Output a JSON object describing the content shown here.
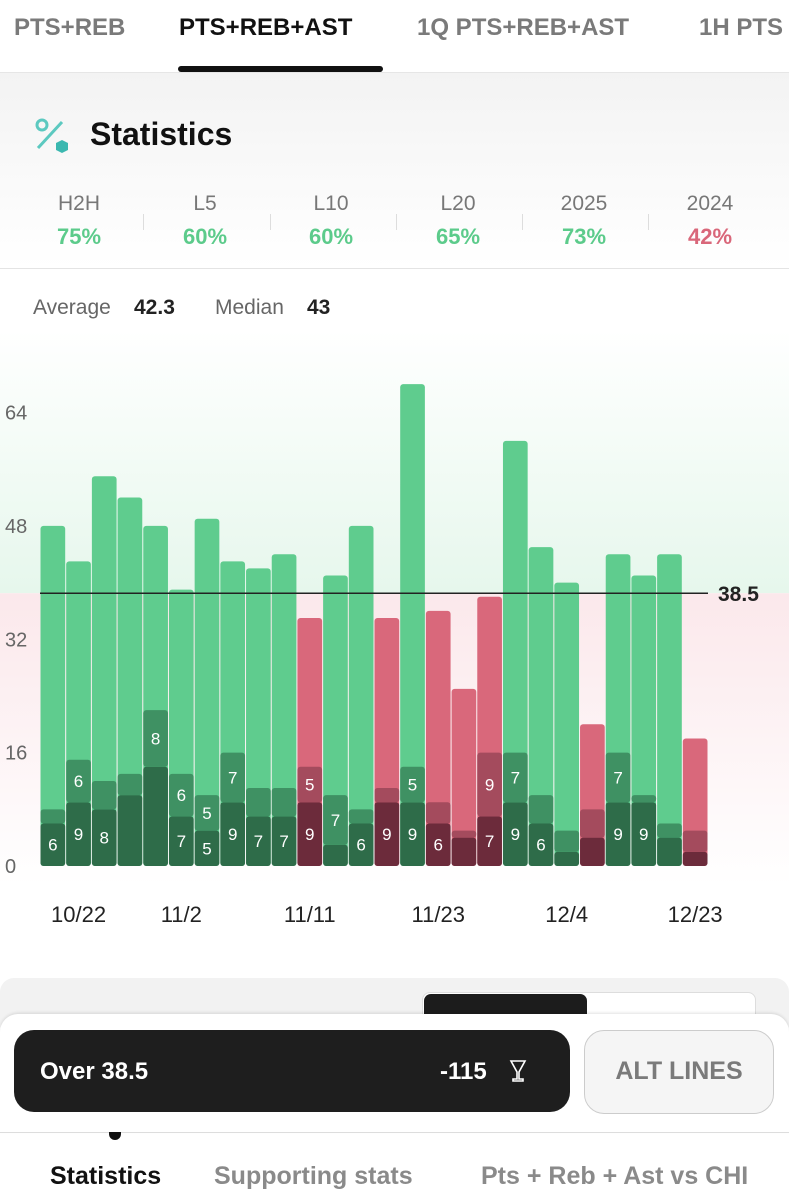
{
  "tabs": [
    "PTS+REB",
    "PTS+REB+AST",
    "1Q PTS+REB+AST",
    "1H PTS"
  ],
  "stats": {
    "title": "Statistics",
    "periods": [
      {
        "label": "H2H",
        "value": "75%"
      },
      {
        "label": "L5",
        "value": "60%"
      },
      {
        "label": "L10",
        "value": "60%"
      },
      {
        "label": "L20",
        "value": "65%"
      },
      {
        "label": "2025",
        "value": "73%"
      },
      {
        "label": "2024",
        "value": "42%"
      }
    ]
  },
  "summary": {
    "average_label": "Average",
    "average": "42.3",
    "median_label": "Median",
    "median": "43"
  },
  "chart_data": {
    "type": "bar",
    "categories": [
      null,
      "10/22",
      null,
      null,
      null,
      "11/2",
      null,
      null,
      null,
      null,
      "11/11",
      null,
      null,
      null,
      null,
      "11/23",
      null,
      null,
      null,
      null,
      "12/4",
      null,
      null,
      null,
      null,
      "12/23"
    ],
    "line": 38.5,
    "line_label": "38.5",
    "ylim": [
      0,
      70
    ],
    "yticks": [
      0,
      16,
      32,
      48,
      64
    ],
    "series": [
      {
        "color": "#5fcc8e",
        "under_color": "#d9687b",
        "values": [
          48,
          43,
          55,
          52,
          48,
          39,
          49,
          43,
          42,
          44,
          35,
          41,
          48,
          35,
          68,
          36,
          25,
          38,
          60,
          45,
          40,
          20,
          44,
          41,
          44,
          18
        ]
      },
      {
        "color": "#2e6c49",
        "under_color": "#6c2b3b",
        "values": [
          6,
          9,
          8,
          10,
          14,
          7,
          5,
          9,
          7,
          7,
          9,
          3,
          6,
          9,
          9,
          6,
          4,
          7,
          9,
          6,
          2,
          4,
          9,
          9,
          4,
          2
        ],
        "value_labels": [
          "6",
          "9",
          "8",
          null,
          null,
          "7",
          "5",
          "9",
          "7",
          "7",
          "9",
          null,
          "6",
          "9",
          "9",
          "6",
          null,
          "7",
          "9",
          "6",
          null,
          null,
          "9",
          "9",
          null,
          null
        ]
      },
      {
        "color": "#3f9163",
        "under_color": "#a44b5d",
        "values": [
          2,
          6,
          4,
          3,
          8,
          6,
          5,
          7,
          4,
          4,
          5,
          7,
          2,
          2,
          5,
          3,
          1,
          9,
          7,
          4,
          3,
          4,
          7,
          1,
          2,
          3
        ],
        "value_labels": [
          null,
          "6",
          null,
          null,
          "8",
          "6",
          "5",
          "7",
          null,
          null,
          "5",
          "7",
          null,
          null,
          "5",
          null,
          null,
          "9",
          "7",
          null,
          null,
          null,
          "7",
          null,
          null,
          null
        ]
      }
    ]
  },
  "bet": {
    "label": "Over 38.5",
    "odds": "-115",
    "alt": "ALT LINES"
  },
  "nav": [
    "Statistics",
    "Supporting stats",
    "Pts + Reb + Ast vs CHI"
  ]
}
